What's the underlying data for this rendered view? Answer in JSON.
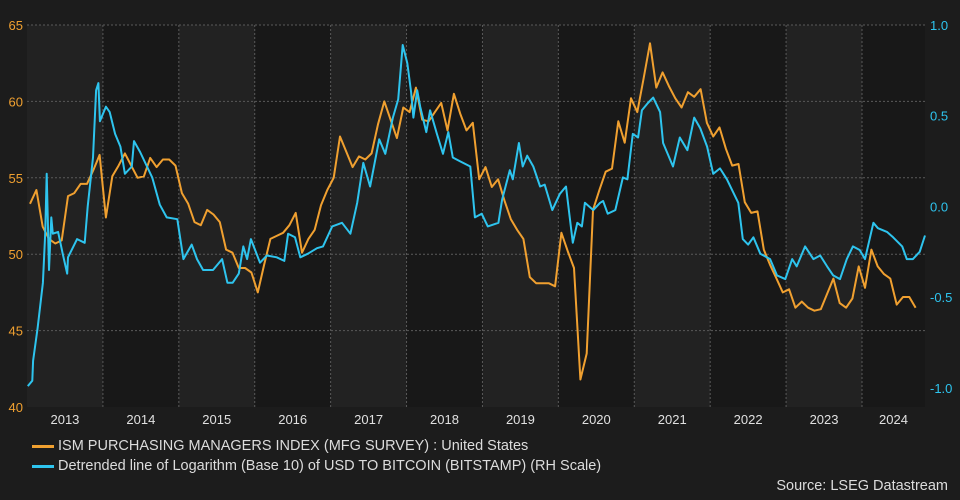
{
  "chart_data": {
    "type": "line",
    "title": "",
    "xlabel": "",
    "x_tick_labels": [
      "2013",
      "2014",
      "2015",
      "2016",
      "2017",
      "2018",
      "2019",
      "2020",
      "2021",
      "2022",
      "2023",
      "2024"
    ],
    "xlim": [
      2013.0,
      2024.83
    ],
    "left_axis": {
      "ylim": [
        40,
        65
      ],
      "ticks": [
        "40",
        "45",
        "50",
        "55",
        "60",
        "65"
      ],
      "color": "#f0a030"
    },
    "right_axis": {
      "ylim": [
        -1.105,
        1.0
      ],
      "ticks": [
        "-1.0",
        "-0.5",
        "0.0",
        "0.5",
        "1.0"
      ],
      "color": "#2ec4ee"
    },
    "grid": true,
    "legend_placement": "bottom-left",
    "series": [
      {
        "name": "ISM PURCHASING MANAGERS INDEX (MFG SURVEY) : United States",
        "axis": "left",
        "color": "#f0a030",
        "frequency": "monthly",
        "start": "2013-01",
        "values": [
          53.3,
          54.2,
          51.8,
          51.0,
          50.7,
          50.9,
          53.8,
          54.0,
          54.6,
          54.6,
          55.5,
          56.5,
          52.4,
          55.1,
          55.8,
          56.6,
          55.8,
          55.0,
          55.1,
          56.3,
          55.7,
          56.2,
          56.2,
          55.8,
          54.0,
          53.3,
          52.1,
          51.9,
          52.9,
          52.6,
          52.1,
          50.3,
          50.1,
          49.1,
          49.1,
          48.8,
          47.5,
          49.3,
          51.0,
          51.2,
          51.4,
          51.9,
          52.7,
          50.1,
          51.0,
          51.6,
          53.2,
          54.2,
          55.0,
          57.7,
          56.7,
          55.7,
          56.4,
          56.2,
          56.6,
          58.5,
          60.0,
          58.8,
          57.6,
          59.6,
          59.3,
          60.9,
          58.8,
          58.7,
          59.3,
          59.9,
          58.1,
          60.5,
          59.2,
          58.1,
          58.6,
          54.9,
          55.7,
          54.4,
          54.9,
          53.5,
          52.3,
          51.6,
          51.0,
          48.5,
          48.1,
          48.1,
          48.1,
          47.9,
          51.4,
          50.2,
          49.1,
          41.8,
          43.5,
          52.9,
          54.2,
          55.4,
          55.6,
          58.7,
          57.3,
          60.2,
          59.3,
          61.5,
          63.8,
          60.9,
          61.9,
          61.0,
          60.2,
          59.6,
          60.6,
          60.3,
          60.8,
          58.6,
          57.7,
          58.3,
          56.9,
          55.8,
          55.9,
          53.4,
          52.7,
          52.8,
          50.3,
          49.3,
          48.4,
          47.5,
          47.7,
          46.5,
          46.9,
          46.5,
          46.3,
          46.4,
          47.4,
          48.4,
          46.8,
          46.5,
          47.1,
          49.2,
          47.8,
          50.3,
          49.2,
          48.7,
          48.4,
          46.7,
          47.2,
          47.2,
          46.5
        ]
      },
      {
        "name": "Detrended line of Logarithm (Base 10) of USD TO BITCOIN (BITSTAMP) (RH Scale)",
        "axis": "right",
        "color": "#2ec4ee",
        "points": [
          [
            2013.01,
            -0.99
          ],
          [
            2013.07,
            -0.96
          ],
          [
            2013.08,
            -0.85
          ],
          [
            2013.14,
            -0.67
          ],
          [
            2013.21,
            -0.42
          ],
          [
            2013.24,
            -0.15
          ],
          [
            2013.26,
            0.18
          ],
          [
            2013.29,
            -0.35
          ],
          [
            2013.32,
            -0.06
          ],
          [
            2013.34,
            -0.15
          ],
          [
            2013.41,
            -0.14
          ],
          [
            2013.47,
            -0.26
          ],
          [
            2013.53,
            -0.37
          ],
          [
            2013.54,
            -0.28
          ],
          [
            2013.66,
            -0.18
          ],
          [
            2013.76,
            -0.2
          ],
          [
            2013.8,
            0.0
          ],
          [
            2013.87,
            0.27
          ],
          [
            2013.91,
            0.64
          ],
          [
            2013.94,
            0.68
          ],
          [
            2013.96,
            0.47
          ],
          [
            2014.04,
            0.55
          ],
          [
            2014.09,
            0.52
          ],
          [
            2014.16,
            0.4
          ],
          [
            2014.23,
            0.33
          ],
          [
            2014.29,
            0.18
          ],
          [
            2014.38,
            0.22
          ],
          [
            2014.41,
            0.36
          ],
          [
            2014.49,
            0.3
          ],
          [
            2014.65,
            0.16
          ],
          [
            2014.75,
            0.01
          ],
          [
            2014.84,
            -0.06
          ],
          [
            2014.98,
            -0.07
          ],
          [
            2015.06,
            -0.29
          ],
          [
            2015.17,
            -0.21
          ],
          [
            2015.24,
            -0.29
          ],
          [
            2015.32,
            -0.35
          ],
          [
            2015.45,
            -0.35
          ],
          [
            2015.57,
            -0.29
          ],
          [
            2015.64,
            -0.42
          ],
          [
            2015.71,
            -0.42
          ],
          [
            2015.79,
            -0.37
          ],
          [
            2015.85,
            -0.22
          ],
          [
            2015.9,
            -0.29
          ],
          [
            2015.95,
            -0.18
          ],
          [
            2016.07,
            -0.31
          ],
          [
            2016.16,
            -0.27
          ],
          [
            2016.29,
            -0.28
          ],
          [
            2016.39,
            -0.3
          ],
          [
            2016.44,
            -0.15
          ],
          [
            2016.53,
            -0.17
          ],
          [
            2016.6,
            -0.28
          ],
          [
            2016.7,
            -0.26
          ],
          [
            2016.82,
            -0.23
          ],
          [
            2016.9,
            -0.22
          ],
          [
            2017.02,
            -0.11
          ],
          [
            2017.15,
            -0.09
          ],
          [
            2017.26,
            -0.15
          ],
          [
            2017.35,
            0.02
          ],
          [
            2017.43,
            0.24
          ],
          [
            2017.52,
            0.11
          ],
          [
            2017.64,
            0.37
          ],
          [
            2017.72,
            0.29
          ],
          [
            2017.82,
            0.49
          ],
          [
            2017.89,
            0.59
          ],
          [
            2017.95,
            0.89
          ],
          [
            2018.01,
            0.79
          ],
          [
            2018.06,
            0.63
          ],
          [
            2018.09,
            0.49
          ],
          [
            2018.14,
            0.64
          ],
          [
            2018.18,
            0.55
          ],
          [
            2018.26,
            0.41
          ],
          [
            2018.31,
            0.53
          ],
          [
            2018.4,
            0.4
          ],
          [
            2018.48,
            0.29
          ],
          [
            2018.55,
            0.41
          ],
          [
            2018.61,
            0.27
          ],
          [
            2018.7,
            0.25
          ],
          [
            2018.84,
            0.22
          ],
          [
            2018.9,
            -0.06
          ],
          [
            2018.99,
            -0.04
          ],
          [
            2019.07,
            -0.11
          ],
          [
            2019.21,
            -0.09
          ],
          [
            2019.26,
            0.04
          ],
          [
            2019.36,
            0.2
          ],
          [
            2019.4,
            0.15
          ],
          [
            2019.48,
            0.35
          ],
          [
            2019.53,
            0.22
          ],
          [
            2019.59,
            0.28
          ],
          [
            2019.67,
            0.22
          ],
          [
            2019.76,
            0.11
          ],
          [
            2019.82,
            0.12
          ],
          [
            2019.92,
            -0.02
          ],
          [
            2020.02,
            0.07
          ],
          [
            2020.1,
            0.11
          ],
          [
            2020.19,
            -0.2
          ],
          [
            2020.25,
            -0.09
          ],
          [
            2020.31,
            -0.11
          ],
          [
            2020.35,
            0.02
          ],
          [
            2020.46,
            -0.02
          ],
          [
            2020.55,
            0.02
          ],
          [
            2020.59,
            0.03
          ],
          [
            2020.65,
            -0.04
          ],
          [
            2020.75,
            -0.02
          ],
          [
            2020.85,
            0.16
          ],
          [
            2020.91,
            0.15
          ],
          [
            2020.98,
            0.4
          ],
          [
            2021.05,
            0.38
          ],
          [
            2021.1,
            0.53
          ],
          [
            2021.18,
            0.57
          ],
          [
            2021.25,
            0.6
          ],
          [
            2021.34,
            0.52
          ],
          [
            2021.38,
            0.35
          ],
          [
            2021.43,
            0.3
          ],
          [
            2021.51,
            0.22
          ],
          [
            2021.6,
            0.38
          ],
          [
            2021.7,
            0.31
          ],
          [
            2021.79,
            0.49
          ],
          [
            2021.87,
            0.43
          ],
          [
            2021.96,
            0.33
          ],
          [
            2022.04,
            0.18
          ],
          [
            2022.13,
            0.21
          ],
          [
            2022.22,
            0.15
          ],
          [
            2022.37,
            0.02
          ],
          [
            2022.43,
            -0.18
          ],
          [
            2022.5,
            -0.21
          ],
          [
            2022.57,
            -0.17
          ],
          [
            2022.66,
            -0.26
          ],
          [
            2022.79,
            -0.29
          ],
          [
            2022.88,
            -0.38
          ],
          [
            2022.99,
            -0.4
          ],
          [
            2023.08,
            -0.29
          ],
          [
            2023.14,
            -0.33
          ],
          [
            2023.25,
            -0.22
          ],
          [
            2023.36,
            -0.29
          ],
          [
            2023.45,
            -0.27
          ],
          [
            2023.54,
            -0.33
          ],
          [
            2023.62,
            -0.38
          ],
          [
            2023.71,
            -0.4
          ],
          [
            2023.8,
            -0.29
          ],
          [
            2023.88,
            -0.22
          ],
          [
            2023.97,
            -0.24
          ],
          [
            2024.04,
            -0.29
          ],
          [
            2024.15,
            -0.09
          ],
          [
            2024.21,
            -0.12
          ],
          [
            2024.33,
            -0.14
          ],
          [
            2024.41,
            -0.17
          ],
          [
            2024.53,
            -0.22
          ],
          [
            2024.59,
            -0.29
          ],
          [
            2024.67,
            -0.29
          ],
          [
            2024.76,
            -0.25
          ],
          [
            2024.83,
            -0.16
          ]
        ]
      }
    ]
  },
  "legend": {
    "items": [
      {
        "label": "ISM PURCHASING MANAGERS INDEX (MFG SURVEY) : United States",
        "color": "#f0a030"
      },
      {
        "label": "Detrended line of Logarithm (Base 10) of USD TO BITCOIN (BITSTAMP) (RH Scale)",
        "color": "#2ec4ee"
      }
    ]
  },
  "source": "Source: LSEG Datastream"
}
